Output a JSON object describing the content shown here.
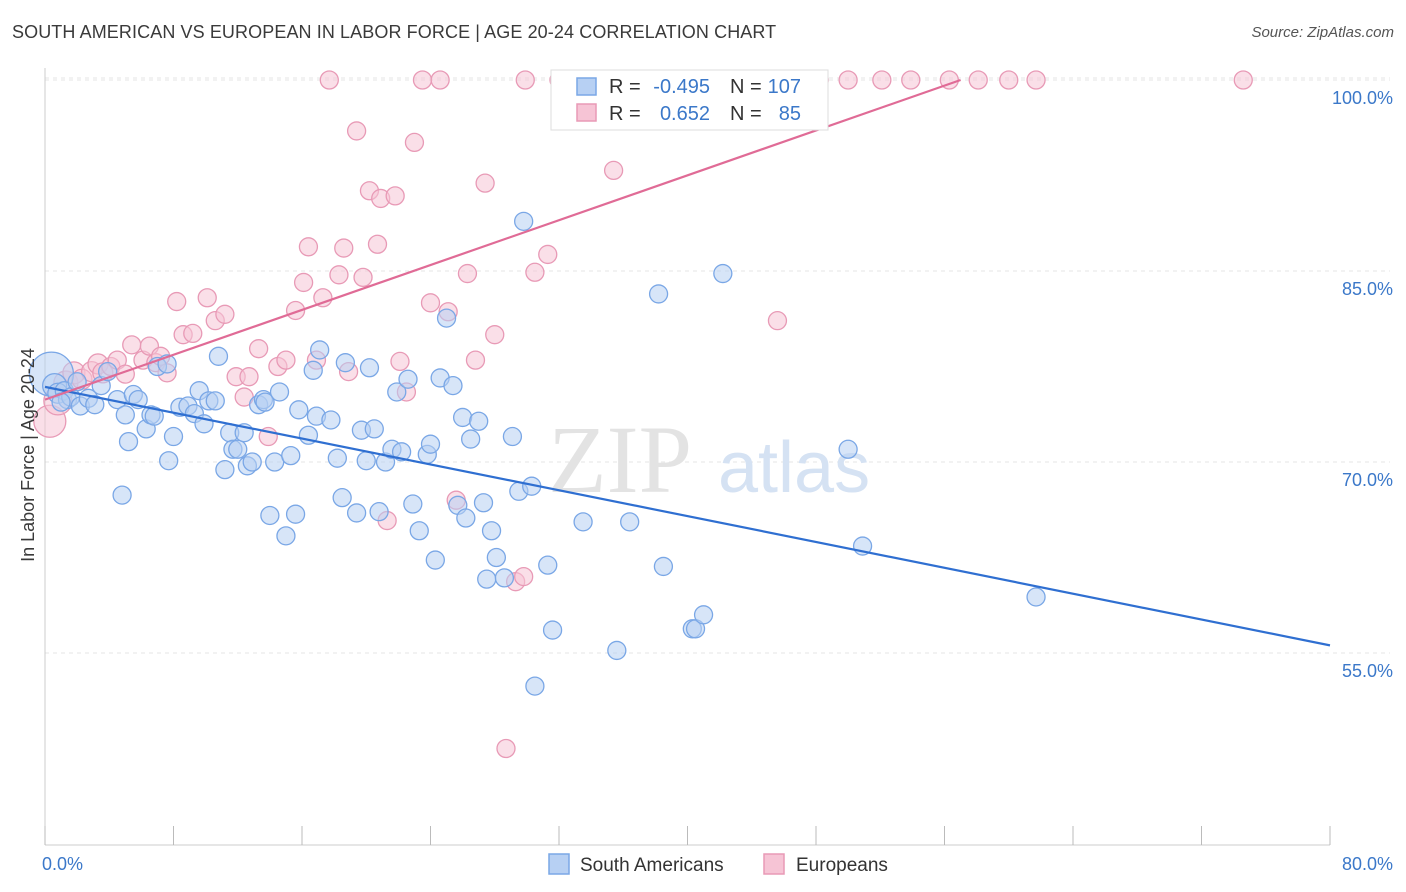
{
  "title": "SOUTH AMERICAN VS EUROPEAN IN LABOR FORCE | AGE 20-24 CORRELATION CHART",
  "source": "Source: ZipAtlas.com",
  "watermark": {
    "zip": "ZIP",
    "atlas": "atlas"
  },
  "chart_data": {
    "type": "scatter",
    "ylabel": "In Labor Force | Age 20-24",
    "xlim": [
      0,
      80
    ],
    "ylim": [
      40,
      101.5
    ],
    "x_tick_labels": [
      {
        "value": 0,
        "label": "0.0%"
      },
      {
        "value": 80,
        "label": "80.0%"
      }
    ],
    "y_tick_labels": [
      {
        "value": 55,
        "label": "55.0%"
      },
      {
        "value": 70,
        "label": "70.0%"
      },
      {
        "value": 85,
        "label": "85.0%"
      },
      {
        "value": 100,
        "label": "100.0%"
      }
    ],
    "grid": true,
    "legend": {
      "position": "top-center",
      "rows": [
        {
          "r_label": "R =",
          "r_value": "-0.495",
          "n_label": "N =",
          "n_value": "107"
        },
        {
          "r_label": "R =",
          "r_value": "0.652",
          "n_label": "N =",
          "n_value": "85"
        }
      ]
    },
    "series": [
      {
        "name": "South Americans",
        "color": "#7aa7e6",
        "fill": "#b7d0f3",
        "line_color": "#2f6fd1",
        "trend": {
          "x": [
            0,
            80
          ],
          "y": [
            75.9,
            55.6
          ]
        },
        "points": [
          [
            0.4,
            76.9,
            22
          ],
          [
            0.6,
            76.0,
            12
          ],
          [
            0.8,
            75.4,
            10
          ],
          [
            1.2,
            75.6,
            9
          ],
          [
            1.4,
            74.9,
            9
          ],
          [
            1.6,
            75.1,
            9
          ],
          [
            2.2,
            74.4,
            9
          ],
          [
            2.7,
            75.0,
            9
          ],
          [
            3.1,
            74.5,
            9
          ],
          [
            3.5,
            76.0,
            9
          ],
          [
            3.9,
            77.1,
            9
          ],
          [
            4.5,
            74.9,
            9
          ],
          [
            5.0,
            73.7,
            9
          ],
          [
            5.5,
            75.3,
            9
          ],
          [
            5.8,
            74.9,
            9
          ],
          [
            6.3,
            72.6,
            9
          ],
          [
            6.6,
            73.7,
            9
          ],
          [
            6.8,
            73.6,
            9
          ],
          [
            7.0,
            77.5,
            9
          ],
          [
            7.6,
            77.7,
            9
          ],
          [
            7.7,
            70.1,
            9
          ],
          [
            8.0,
            72.0,
            9
          ],
          [
            8.4,
            74.3,
            9
          ],
          [
            8.9,
            74.4,
            9
          ],
          [
            9.3,
            73.8,
            9
          ],
          [
            9.6,
            75.6,
            9
          ],
          [
            9.9,
            73.0,
            9
          ],
          [
            10.2,
            74.8,
            9
          ],
          [
            10.6,
            74.8,
            9
          ],
          [
            10.8,
            78.3,
            9
          ],
          [
            11.2,
            69.4,
            9
          ],
          [
            11.5,
            72.3,
            9
          ],
          [
            11.7,
            71.0,
            9
          ],
          [
            12.0,
            71.0,
            9
          ],
          [
            12.4,
            72.3,
            9
          ],
          [
            12.6,
            69.7,
            9
          ],
          [
            12.9,
            70.0,
            9
          ],
          [
            13.3,
            74.5,
            9
          ],
          [
            13.6,
            74.9,
            9
          ],
          [
            13.7,
            74.7,
            9
          ],
          [
            14.0,
            65.8,
            9
          ],
          [
            14.3,
            70.0,
            9
          ],
          [
            14.6,
            75.5,
            9
          ],
          [
            15.0,
            64.2,
            9
          ],
          [
            15.3,
            70.5,
            9
          ],
          [
            15.6,
            65.9,
            9
          ],
          [
            15.8,
            74.1,
            9
          ],
          [
            16.4,
            72.1,
            9
          ],
          [
            16.7,
            77.2,
            9
          ],
          [
            16.9,
            73.6,
            9
          ],
          [
            17.1,
            78.8,
            9
          ],
          [
            17.8,
            73.3,
            9
          ],
          [
            18.2,
            70.3,
            9
          ],
          [
            18.5,
            67.2,
            9
          ],
          [
            18.7,
            77.8,
            9
          ],
          [
            19.4,
            66.0,
            9
          ],
          [
            19.7,
            72.5,
            9
          ],
          [
            20.0,
            70.1,
            9
          ],
          [
            20.2,
            77.4,
            9
          ],
          [
            20.5,
            72.6,
            9
          ],
          [
            20.8,
            66.1,
            9
          ],
          [
            21.2,
            70.0,
            9
          ],
          [
            21.6,
            71.0,
            9
          ],
          [
            21.9,
            75.5,
            9
          ],
          [
            22.2,
            70.8,
            9
          ],
          [
            22.6,
            76.5,
            9
          ],
          [
            22.9,
            66.7,
            9
          ],
          [
            23.3,
            64.6,
            9
          ],
          [
            23.8,
            70.6,
            9
          ],
          [
            24.0,
            71.4,
            9
          ],
          [
            24.3,
            62.3,
            9
          ],
          [
            24.6,
            76.6,
            9
          ],
          [
            25.0,
            81.3,
            9
          ],
          [
            25.4,
            76.0,
            9
          ],
          [
            25.7,
            66.6,
            9
          ],
          [
            26.0,
            73.5,
            9
          ],
          [
            26.2,
            65.6,
            9
          ],
          [
            26.5,
            71.8,
            9
          ],
          [
            27.0,
            73.2,
            9
          ],
          [
            27.3,
            66.8,
            9
          ],
          [
            27.5,
            60.8,
            9
          ],
          [
            27.8,
            64.6,
            9
          ],
          [
            28.1,
            62.5,
            9
          ],
          [
            28.6,
            60.9,
            9
          ],
          [
            29.1,
            72.0,
            9
          ],
          [
            29.5,
            67.7,
            9
          ],
          [
            29.8,
            88.9,
            9
          ],
          [
            30.3,
            68.1,
            9
          ],
          [
            30.5,
            52.4,
            9
          ],
          [
            31.3,
            61.9,
            9
          ],
          [
            31.6,
            56.8,
            9
          ],
          [
            33.5,
            65.3,
            9
          ],
          [
            35.6,
            55.2,
            9
          ],
          [
            36.4,
            65.3,
            9
          ],
          [
            38.2,
            83.2,
            9
          ],
          [
            38.5,
            61.8,
            9
          ],
          [
            40.3,
            56.9,
            9
          ],
          [
            40.5,
            56.9,
            9
          ],
          [
            41.0,
            58.0,
            9
          ],
          [
            42.2,
            84.8,
            9
          ],
          [
            50.0,
            71.0,
            9
          ],
          [
            50.9,
            63.4,
            9
          ],
          [
            61.7,
            59.4,
            9
          ],
          [
            1.0,
            74.7,
            9
          ],
          [
            2.0,
            76.3,
            9
          ],
          [
            5.2,
            71.6,
            9
          ],
          [
            4.8,
            67.4,
            9
          ]
        ]
      },
      {
        "name": "Europeans",
        "color": "#e89ab6",
        "fill": "#f6c4d5",
        "line_color": "#e06b96",
        "trend": {
          "x": [
            0,
            57
          ],
          "y": [
            74.9,
            100.0
          ]
        },
        "points": [
          [
            0.3,
            73.2,
            16
          ],
          [
            0.8,
            74.8,
            14
          ],
          [
            1.3,
            76.2,
            12
          ],
          [
            1.8,
            77.0,
            11
          ],
          [
            2.3,
            76.5,
            10
          ],
          [
            2.9,
            77.1,
            10
          ],
          [
            3.3,
            77.7,
            10
          ],
          [
            3.6,
            77.0,
            10
          ],
          [
            4.1,
            77.5,
            9
          ],
          [
            4.5,
            78.0,
            9
          ],
          [
            5.0,
            76.9,
            9
          ],
          [
            5.4,
            79.2,
            9
          ],
          [
            6.1,
            78.0,
            9
          ],
          [
            6.5,
            79.1,
            9
          ],
          [
            6.9,
            77.8,
            9
          ],
          [
            7.2,
            78.3,
            9
          ],
          [
            7.6,
            77.0,
            9
          ],
          [
            8.2,
            82.6,
            9
          ],
          [
            8.6,
            80.0,
            9
          ],
          [
            9.2,
            80.1,
            9
          ],
          [
            10.1,
            82.9,
            9
          ],
          [
            10.6,
            81.1,
            9
          ],
          [
            11.2,
            81.6,
            9
          ],
          [
            11.9,
            76.7,
            9
          ],
          [
            12.4,
            75.1,
            9
          ],
          [
            12.7,
            76.7,
            9
          ],
          [
            13.3,
            78.9,
            9
          ],
          [
            13.9,
            72.0,
            9
          ],
          [
            14.5,
            77.5,
            9
          ],
          [
            15.0,
            78.0,
            9
          ],
          [
            15.6,
            81.9,
            9
          ],
          [
            16.1,
            84.1,
            9
          ],
          [
            16.4,
            86.9,
            9
          ],
          [
            16.9,
            78.0,
            9
          ],
          [
            17.3,
            82.9,
            9
          ],
          [
            17.7,
            100.0,
            9
          ],
          [
            18.3,
            84.7,
            9
          ],
          [
            18.6,
            86.8,
            9
          ],
          [
            18.9,
            77.1,
            9
          ],
          [
            19.4,
            96.0,
            9
          ],
          [
            19.8,
            84.5,
            9
          ],
          [
            20.2,
            91.3,
            9
          ],
          [
            20.7,
            87.1,
            9
          ],
          [
            20.9,
            90.7,
            9
          ],
          [
            21.3,
            65.4,
            9
          ],
          [
            21.8,
            90.9,
            9
          ],
          [
            22.1,
            77.9,
            9
          ],
          [
            22.5,
            75.5,
            9
          ],
          [
            23.0,
            95.1,
            9
          ],
          [
            23.5,
            100.0,
            9
          ],
          [
            24.0,
            82.5,
            9
          ],
          [
            24.6,
            100.0,
            9
          ],
          [
            25.1,
            81.8,
            9
          ],
          [
            25.6,
            67.0,
            9
          ],
          [
            26.3,
            84.8,
            9
          ],
          [
            26.8,
            78.0,
            9
          ],
          [
            27.4,
            91.9,
            9
          ],
          [
            28.0,
            80.0,
            9
          ],
          [
            28.7,
            47.5,
            9
          ],
          [
            29.3,
            60.6,
            9
          ],
          [
            29.8,
            61.0,
            9
          ],
          [
            30.5,
            84.9,
            9
          ],
          [
            31.3,
            86.3,
            9
          ],
          [
            32.0,
            100.0,
            9
          ],
          [
            33.1,
            100.0,
            9
          ],
          [
            34.2,
            100.0,
            9
          ],
          [
            35.4,
            92.9,
            9
          ],
          [
            36.4,
            100.0,
            9
          ],
          [
            38.2,
            100.0,
            9
          ],
          [
            39.5,
            100.0,
            9
          ],
          [
            41.0,
            100.0,
            9
          ],
          [
            43.0,
            100.0,
            9
          ],
          [
            44.3,
            100.0,
            9
          ],
          [
            45.6,
            81.1,
            9
          ],
          [
            46.9,
            100.0,
            9
          ],
          [
            48.2,
            100.0,
            9
          ],
          [
            50.0,
            100.0,
            9
          ],
          [
            52.1,
            100.0,
            9
          ],
          [
            53.9,
            100.0,
            9
          ],
          [
            56.3,
            100.0,
            9
          ],
          [
            58.1,
            100.0,
            9
          ],
          [
            60.0,
            100.0,
            9
          ],
          [
            61.7,
            100.0,
            9
          ],
          [
            74.6,
            100.0,
            9
          ],
          [
            29.9,
            100.0,
            9
          ]
        ]
      }
    ]
  }
}
